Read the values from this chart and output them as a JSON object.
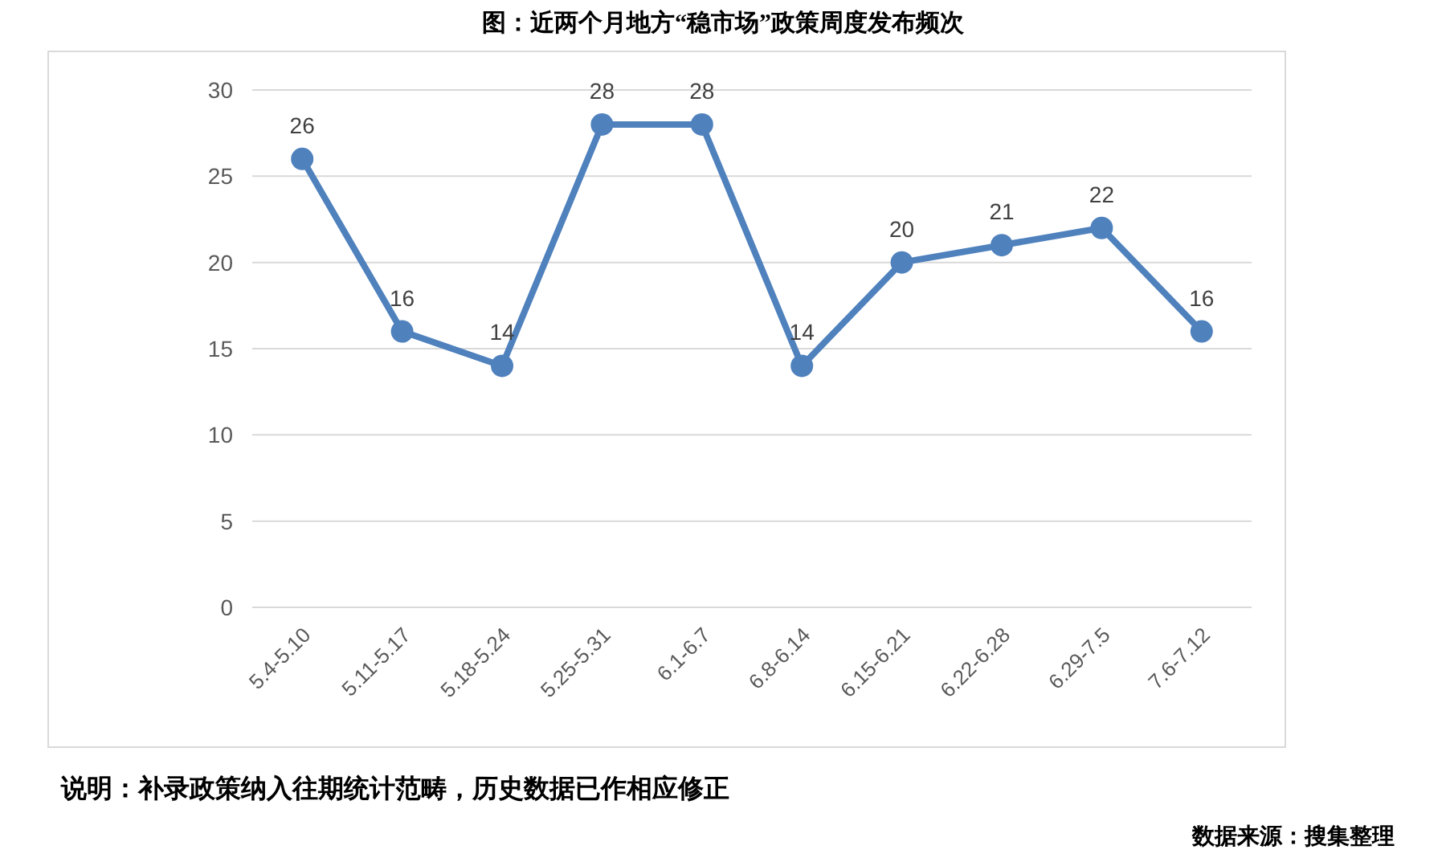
{
  "chart_data": {
    "type": "line",
    "title": "图：近两个月地方“稳市场”政策周度发布频次",
    "categories": [
      "5.4-5.10",
      "5.11-5.17",
      "5.18-5.24",
      "5.25-5.31",
      "6.1-6.7",
      "6.8-6.14",
      "6.15-6.21",
      "6.22-6.28",
      "6.29-7.5",
      "7.6-7.12"
    ],
    "series": [
      {
        "color": "#4f81bd",
        "values": [
          26,
          16,
          14,
          28,
          28,
          14,
          20,
          21,
          22,
          16
        ]
      }
    ],
    "ylim": [
      0,
      30
    ],
    "yticks": [
      0,
      5,
      10,
      15,
      20,
      25,
      30
    ],
    "grid": "y",
    "data_labels": true,
    "marker": "circle",
    "line_style": "solid",
    "annotations": [
      "说明：补录政策纳入往期统计范畴，历史数据已作相应修正",
      "数据来源：搜集整理"
    ]
  }
}
